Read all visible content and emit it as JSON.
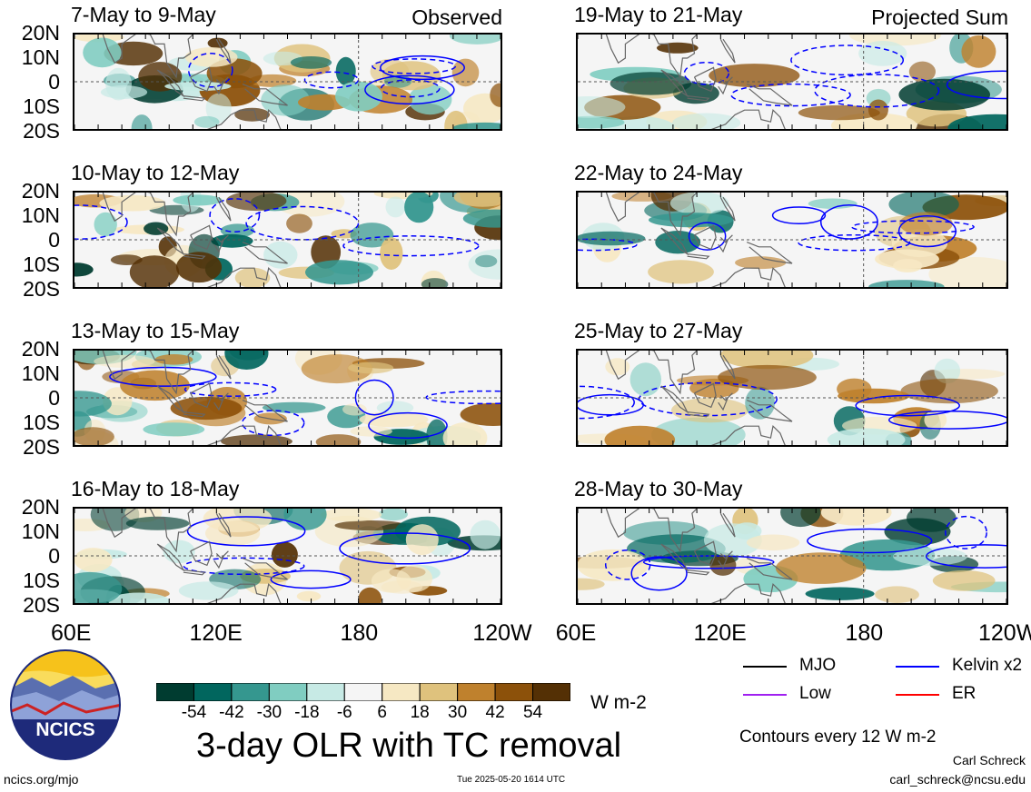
{
  "panels_left": [
    {
      "title": "7-May to 9-May",
      "tag": "Observed"
    },
    {
      "title": "10-May to 12-May",
      "tag": ""
    },
    {
      "title": "13-May to 15-May",
      "tag": ""
    },
    {
      "title": "16-May to 18-May",
      "tag": ""
    }
  ],
  "panels_right": [
    {
      "title": "19-May to 21-May",
      "tag": "Projected Sum"
    },
    {
      "title": "22-May to 24-May",
      "tag": ""
    },
    {
      "title": "25-May to 27-May",
      "tag": ""
    },
    {
      "title": "28-May to 30-May",
      "tag": ""
    }
  ],
  "chart_data": {
    "type": "heatmap",
    "title": "3-day OLR with TC removal",
    "lat_ticks": [
      "20N",
      "10N",
      "0",
      "10S",
      "20S"
    ],
    "lon_ticks": [
      "60E",
      "120E",
      "180",
      "120W"
    ],
    "lat_range": [
      -20,
      20
    ],
    "lon_range": [
      60,
      240
    ],
    "colorbar": {
      "unit": "W m-2",
      "ticks": [
        "-54",
        "-42",
        "-30",
        "-18",
        "-6",
        "6",
        "18",
        "30",
        "42",
        "54"
      ],
      "colors": [
        "#003c30",
        "#01665e",
        "#35978f",
        "#80cdc1",
        "#c7eae5",
        "#f5f5f5",
        "#f6e8c3",
        "#dfc27d",
        "#bf812d",
        "#8c510a",
        "#543005"
      ]
    },
    "legend": [
      {
        "label": "MJO",
        "color": "#000000"
      },
      {
        "label": "Kelvin x2",
        "color": "#0000ff"
      },
      {
        "label": "Low",
        "color": "#a020f0"
      },
      {
        "label": "ER",
        "color": "#ff0000"
      }
    ],
    "contour_note": "Contours every 12 W m-2"
  },
  "footer": {
    "site": "ncics.org/mjo",
    "timestamp": "Tue 2025-05-20 1614 UTC",
    "author": "Carl Schreck",
    "email": "carl_schreck@ncsu.edu",
    "logo_text": "NCICS"
  }
}
